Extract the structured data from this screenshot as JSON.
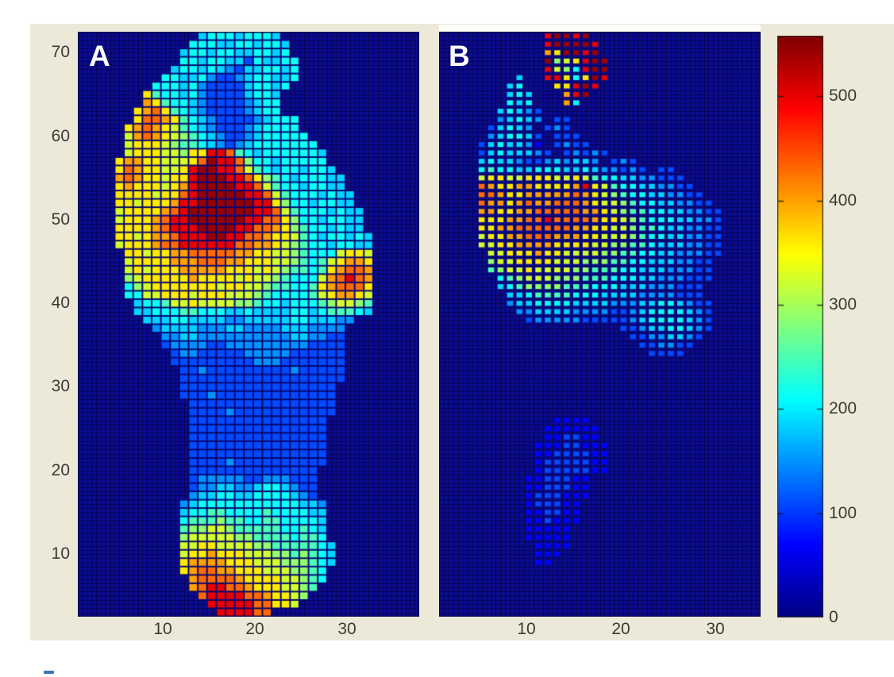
{
  "figure": {
    "background_color": "#ece9d8",
    "outer_background_color": "#ffffff",
    "panel_a_label": "A",
    "panel_b_label": "B"
  },
  "chart_data": [
    {
      "type": "heatmap",
      "panel": "A",
      "title": "A",
      "xlabel": "",
      "ylabel": "",
      "x_ticks": [
        10,
        20,
        30
      ],
      "y_ticks": [
        10,
        20,
        30,
        40,
        50,
        60,
        70
      ],
      "x_range": [
        0.8,
        37.8
      ],
      "y_range": [
        2.5,
        72.5
      ],
      "grid_cols": 37,
      "grid_rows": 70,
      "value_min": 0,
      "value_max": 558,
      "colormap": "jet",
      "grid_on": true,
      "levels": {
        ".": 0,
        "1": 70,
        "2": 110,
        "3": 150,
        "4": 185,
        "5": 215,
        "6": 250,
        "7": 290,
        "8": 325,
        "9": 360,
        "a": 400,
        "b": 430,
        "c": 500,
        "d": 545
      },
      "rows_top_to_bottom": [
        ".............455545554...............",
        "............55544554554..............",
        "...........455455445545..............",
        "...........5545544254455.............",
        "..........45545432445545.............",
        ".........554453223455445.............",
        "........555453222245545..............",
        ".......965545322224554...............",
        ".......a96554322223455...............",
        "......9ab9654322223455...............",
        "......9bba96543222234555.............",
        ".....9aba986543222345555.............",
        ".....8aba9876543223455555............",
        ".....899987665432345555555...........",
        ".....899988799ccb6545555554..........",
        "....9aa998889bdccb755455555..........",
        "....9ba99889cddccb8654554554.........",
        "....aba99899cdddccb9765455544........",
        "....9a99989acddddccb865545544........",
        "....9999899bcdddddccb865554544.......",
        "....998999accddddddcc975545544.......",
        "....89999abcdddddddccb865554544......",
        "....8999abccddddddccbb975545544......",
        "....9999abcccddddccbba976554544......",
        "....9989aabcccddccbba99865455454.....",
        "....8999abbccccccbbaa98765545544.....",
        ".....99899aabbbbbaa9988765558998.....",
        ".....89999aaabbbaa99988765689aa9.....",
        ".....898999aaaaa999898766569abba.....",
        ".....7899999a99998988765558abcba.....",
        ".....5789999999899887665569abbb9.....",
        ".....55889998999888765555689aa98.....",
        "......45568898888776554555678876.....",
        "......44555665554454444554566654.....",
        ".......44455444433444445544433.......",
        "........344443334433334443333........",
        ".........33443333333333443322........",
        ".........23333223333333332222........",
        "..........2332222233333222222........",
        "..........2222222223332222222........",
        "...........223222222222322222........",
        "...........222222222222222222........",
        "...........22222222222222222.........",
        "...........22232222222222222.........",
        "............2222222222222222.........",
        "............2222322222222222.........",
        "............222222222222222..........",
        "............222222222222222..........",
        "............222222222222222..........",
        "............222222222222222..........",
        "............222222222222222..........",
        "............222232222222222..........",
        "............22222222222222...........",
        "............23333322333222...........",
        "............23344334554322...........",
        "............34455445555432...........",
        "...........3455555555555443..........",
        "...........4556655556555544..........",
        "...........5666766556655554..........",
        "...........6778876666655654..........",
        "...........7888887766665665..........",
        "...........88998888776666654.........",
        "...........899a9998887767654.........",
        "...........9aaaa999888777654.........",
        "...........9abbaa9998887765..........",
        "............abbbba999988765..........",
        "............abccbba9998876...........",
        ".............bccccbba9987............",
        "..............cccccbb998.............",
        "...............ccccbb................"
      ]
    },
    {
      "type": "heatmap",
      "panel": "B",
      "title": "B",
      "xlabel": "",
      "ylabel": "",
      "x_ticks": [
        10,
        20,
        30
      ],
      "y_ticks": [],
      "x_range": [
        0.8,
        34.8
      ],
      "y_range": [
        2.5,
        72.5
      ],
      "grid_cols": 34,
      "grid_rows": 70,
      "value_min": 0,
      "value_max": 558,
      "colormap": "jet",
      "grid_on": true,
      "levels": {
        ".": 0,
        "1": 70,
        "2": 110,
        "3": 150,
        "4": 185,
        "5": 215,
        "6": 250,
        "7": 290,
        "8": 325,
        "9": 360,
        "a": 400,
        "b": 430,
        "c": 500,
        "d": 545
      },
      "rows_top_to_bottom": [
        "...........cddcd..................",
        "...........cddddc.................",
        "...........a9ddcd.................",
        "...........d789cdd................",
        "...........c875cdd................",
        "........4..cc959dc................",
        ".......45...99cdc.................",
        ".......454...acd..................",
        ".......545...a5...................",
        "......45432.......................",
        "......34543.22....................",
        ".....24543.232....................",
        ".....345542.222...................",
        "....2454431.2322..................",
        "....24544432.23232................",
        "....4544322343443.232.............",
        "....565544555445433232.22.........",
        "....8998899988986554433222........",
        "....ba99aa9999ac98655443322.......",
        "....bba99aaaaaba987655443322......",
        "....baa9abaabbba9887655443322.....",
        "....aa99aabbbbbaa9876655443322....",
        "....999aabbcbbbba9987655544332....",
        "....99aabbbbbbaa99887665443322....",
        "....899aabbbaaa998887655443322....",
        "....8899aaaa999988776654443322....",
        ".....88999a9988887766554433322....",
        ".....788999988877766554443322.....",
        ".....678898888776665544433322.....",
        "......56788877766655544333222.....",
        "......4567777666555444333222......",
        ".......445666655544443333222......",
        ".......3445555444433344554322.....",
        "........334444333322345555432.....",
        ".........23333322222345555432.....",
        "...................2234455432.....",
        "....................22334432......",
        ".....................223322.......",
        "......................2222........",
        "..................................",
        "..................................",
        "..................................",
        "..................................",
        "..................................",
        "..................................",
        "..................................",
        "............1111..................",
        "...........111111.................",
        "...........112211.................",
        "..........11122111................",
        "..........11222211................",
        "..........12222211................",
        "..........12222211................",
        ".........1122211..................",
        ".........1122211..................",
        ".........1222111..................",
        ".........122211...................",
        ".........112211...................",
        ".........112111...................",
        ".........11111....................",
        ".........11111....................",
        "..........1111....................",
        "..........111.....................",
        "..........11......................",
        "..................................",
        "..................................",
        "..................................",
        "..................................",
        "..................................",
        ".................................."
      ]
    },
    {
      "type": "colorbar",
      "ticks": [
        0,
        100,
        200,
        300,
        400,
        500
      ],
      "min": 0,
      "max": 558,
      "colormap": "jet",
      "orientation": "vertical"
    }
  ]
}
